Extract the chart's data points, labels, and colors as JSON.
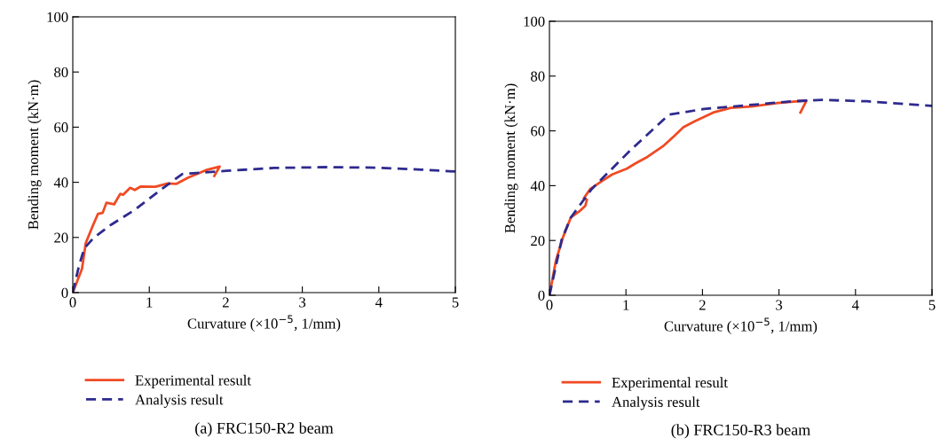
{
  "chart_data": [
    {
      "type": "line",
      "title": "(a) FRC150-R2 beam",
      "xlabel": "Curvature (×10$^{−5}$, 1/mm)",
      "ylabel": "Bending moment (kN·m)",
      "xlim": [
        0,
        5
      ],
      "ylim": [
        0,
        100
      ],
      "xticks": [
        0,
        1,
        2,
        3,
        4,
        5
      ],
      "yticks": [
        0,
        20,
        40,
        60,
        80,
        100
      ],
      "grid": false,
      "legend": "bottom",
      "series": [
        {
          "name": "Experimental result",
          "color": "#f04a23",
          "line_style": "solid",
          "x": [
            0,
            0.12,
            0.17,
            0.25,
            0.33,
            0.39,
            0.44,
            0.54,
            0.62,
            0.66,
            0.75,
            0.81,
            0.89,
            1.08,
            1.24,
            1.35,
            1.51,
            1.74,
            1.92,
            1.85
          ],
          "values": [
            0,
            8.6,
            18,
            23.5,
            28.6,
            28.9,
            32.6,
            32,
            35.8,
            35.5,
            38,
            37.2,
            38.5,
            38.4,
            39.6,
            39.4,
            41.7,
            44.4,
            45.7,
            42.3
          ]
        },
        {
          "name": "Analysis result",
          "color": "#2e2a8e",
          "line_style": "dashed",
          "x": [
            0,
            0.08,
            0.15,
            0.27,
            0.5,
            0.81,
            1.16,
            1.43,
            1.62,
            1.97,
            2.63,
            3.32,
            3.98,
            4.56,
            5
          ],
          "values": [
            0,
            9.6,
            16,
            19.8,
            24.6,
            30,
            37.5,
            43,
            43.4,
            44.1,
            45.2,
            45.5,
            45.3,
            44.6,
            43.9
          ]
        }
      ]
    },
    {
      "type": "line",
      "title": "(b) FRC150-R3 beam",
      "xlabel": "Curvature (×10$^{−5}$, 1/mm)",
      "ylabel": "Bending moment (kN·m)",
      "xlim": [
        0,
        5
      ],
      "ylim": [
        0,
        100
      ],
      "xticks": [
        0,
        1,
        2,
        3,
        4,
        5
      ],
      "yticks": [
        0,
        20,
        40,
        60,
        80,
        100
      ],
      "grid": false,
      "legend": "bottom",
      "series": [
        {
          "name": "Experimental result",
          "color": "#f04a23",
          "line_style": "solid",
          "x": [
            0,
            0.085,
            0.18,
            0.28,
            0.39,
            0.47,
            0.49,
            0.45,
            0.53,
            0.67,
            0.82,
            1.01,
            1.13,
            1.28,
            1.48,
            1.63,
            1.75,
            1.9,
            2.14,
            2.37,
            2.64,
            2.99,
            3.36,
            3.28
          ],
          "values": [
            0,
            12.7,
            21.4,
            28.4,
            30.6,
            32.7,
            34.9,
            35.4,
            38.7,
            41.4,
            44.1,
            46.2,
            48.2,
            50.5,
            54.3,
            58.1,
            61.3,
            63.5,
            66.7,
            68.4,
            68.9,
            70.2,
            71.1,
            66.7
          ]
        },
        {
          "name": "Analysis result",
          "color": "#2e2a8e",
          "line_style": "dashed",
          "x": [
            0,
            0.16,
            0.28,
            0.55,
            1.05,
            1.56,
            2.02,
            2.6,
            3.18,
            3.57,
            4.15,
            5
          ],
          "values": [
            0,
            20.3,
            28.4,
            38.7,
            52.7,
            65.9,
            68,
            69.4,
            70.8,
            71.3,
            70.8,
            69.1
          ]
        }
      ]
    }
  ]
}
